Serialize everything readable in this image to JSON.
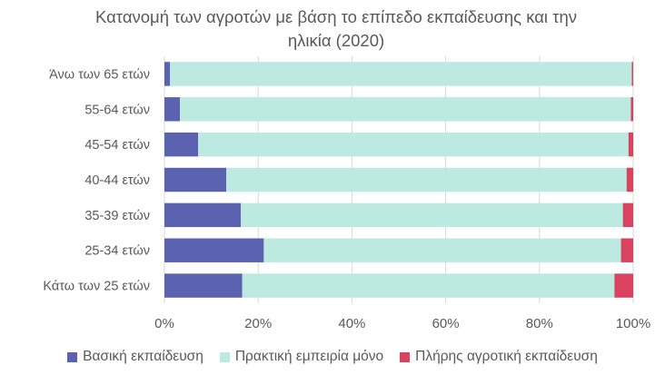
{
  "chart_data": {
    "type": "bar",
    "orientation": "horizontal",
    "stacked": "percent",
    "title": "Κατανομή των αγροτών με βάση το επίπεδο εκπαίδευσης και την ηλικία (2020)",
    "title_lines": [
      "Κατανομή των αγροτών με βάση το επίπεδο εκπαίδευσης και την",
      "ηλικία (2020)"
    ],
    "categories": [
      "Άνω των 65 ετών",
      "55-64 ετών",
      "45-54 ετών",
      "40-44 ετών",
      "35-39 ετών",
      "25-34 ετών",
      "Κάτω των 25 ετών"
    ],
    "series": [
      {
        "name": "Βασική εκπαίδευση",
        "color": "#5b63b0",
        "values": [
          1.2,
          3.3,
          7.2,
          13.2,
          16.3,
          21.2,
          16.6
        ]
      },
      {
        "name": "Πρακτική εμπειρία μόνο",
        "color": "#bdeae0",
        "values": [
          98.5,
          96.2,
          91.8,
          85.4,
          81.5,
          76.2,
          79.4
        ]
      },
      {
        "name": "Πλήρης αγροτική εκπαίδευση",
        "color": "#d9435f",
        "values": [
          0.3,
          0.5,
          1.0,
          1.4,
          2.2,
          2.6,
          4.0
        ]
      }
    ],
    "xlim": [
      0,
      100
    ],
    "x_ticks": [
      "0%",
      "20%",
      "40%",
      "60%",
      "80%",
      "100%"
    ],
    "grid": "vertical",
    "legend": "bottom"
  }
}
